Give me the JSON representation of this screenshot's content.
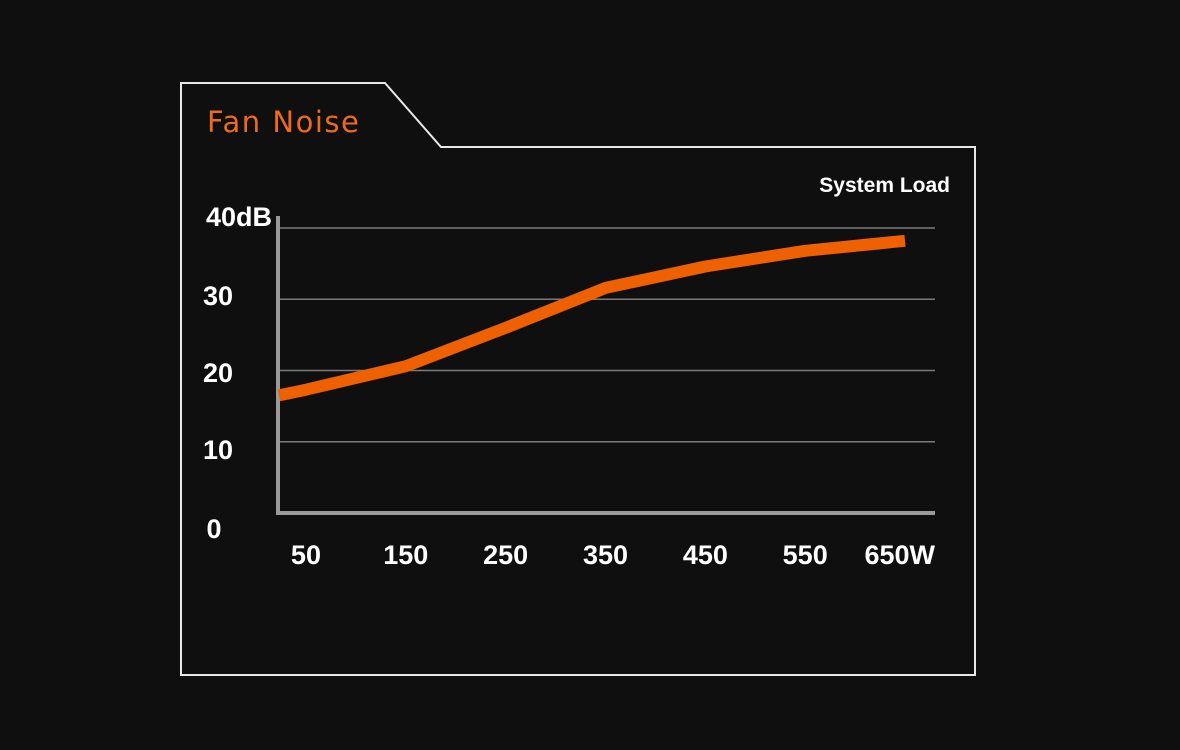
{
  "colors": {
    "background": "#0f0f0f",
    "frame": "#e8e8e8",
    "title": "#ee6a1f",
    "line": "#ee6000",
    "grid": "#7a7a7a",
    "axis": "#9a9a9a",
    "text": "#ffffff"
  },
  "chart_data": {
    "type": "line",
    "title": "Fan Noise",
    "xlabel": "System Load",
    "ylabel": "",
    "x": [
      23,
      50,
      150,
      250,
      350,
      450,
      550,
      650
    ],
    "series": [
      {
        "values": [
          16.5,
          17.3,
          20.6,
          26.0,
          31.6,
          34.6,
          36.8,
          38.2
        ]
      }
    ],
    "x_tick_labels": [
      "50",
      "150",
      "250",
      "350",
      "450",
      "550",
      "650W"
    ],
    "y_tick_labels": [
      "0",
      "10",
      "20",
      "30",
      "40dB"
    ],
    "x_ticks": [
      50,
      150,
      250,
      350,
      450,
      550,
      650
    ],
    "y_ticks": [
      0,
      10,
      20,
      30,
      40
    ],
    "xlim": [
      22,
      680
    ],
    "ylim": [
      0,
      40
    ],
    "grid": true,
    "legend": "none"
  }
}
